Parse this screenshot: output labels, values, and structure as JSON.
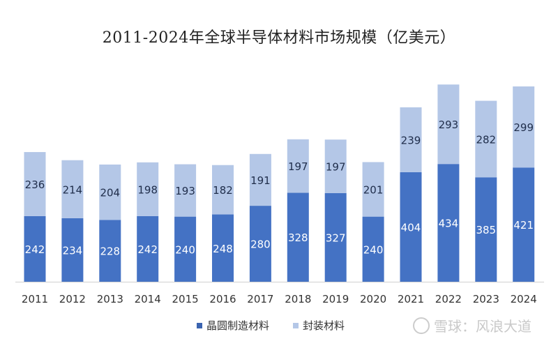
{
  "chart_data": {
    "type": "bar",
    "stacked": true,
    "title": "2011-2024年全球半导体材料市场规模（亿美元）",
    "categories": [
      "2011",
      "2012",
      "2013",
      "2014",
      "2015",
      "2016",
      "2017",
      "2018",
      "2019",
      "2020",
      "2021",
      "2022",
      "2023",
      "2024"
    ],
    "series": [
      {
        "name": "晶圆制造材料",
        "color": "#4472c4",
        "values": [
          242,
          234,
          228,
          242,
          240,
          248,
          280,
          328,
          327,
          240,
          404,
          434,
          385,
          421
        ]
      },
      {
        "name": "封装材料",
        "color": "#b4c7e7",
        "values": [
          236,
          214,
          204,
          198,
          193,
          182,
          191,
          197,
          197,
          201,
          239,
          293,
          282,
          299
        ]
      }
    ],
    "ylim": [
      0,
      780
    ],
    "grid": false,
    "legend": "bottom"
  },
  "watermark": "雪球：风浪大道"
}
